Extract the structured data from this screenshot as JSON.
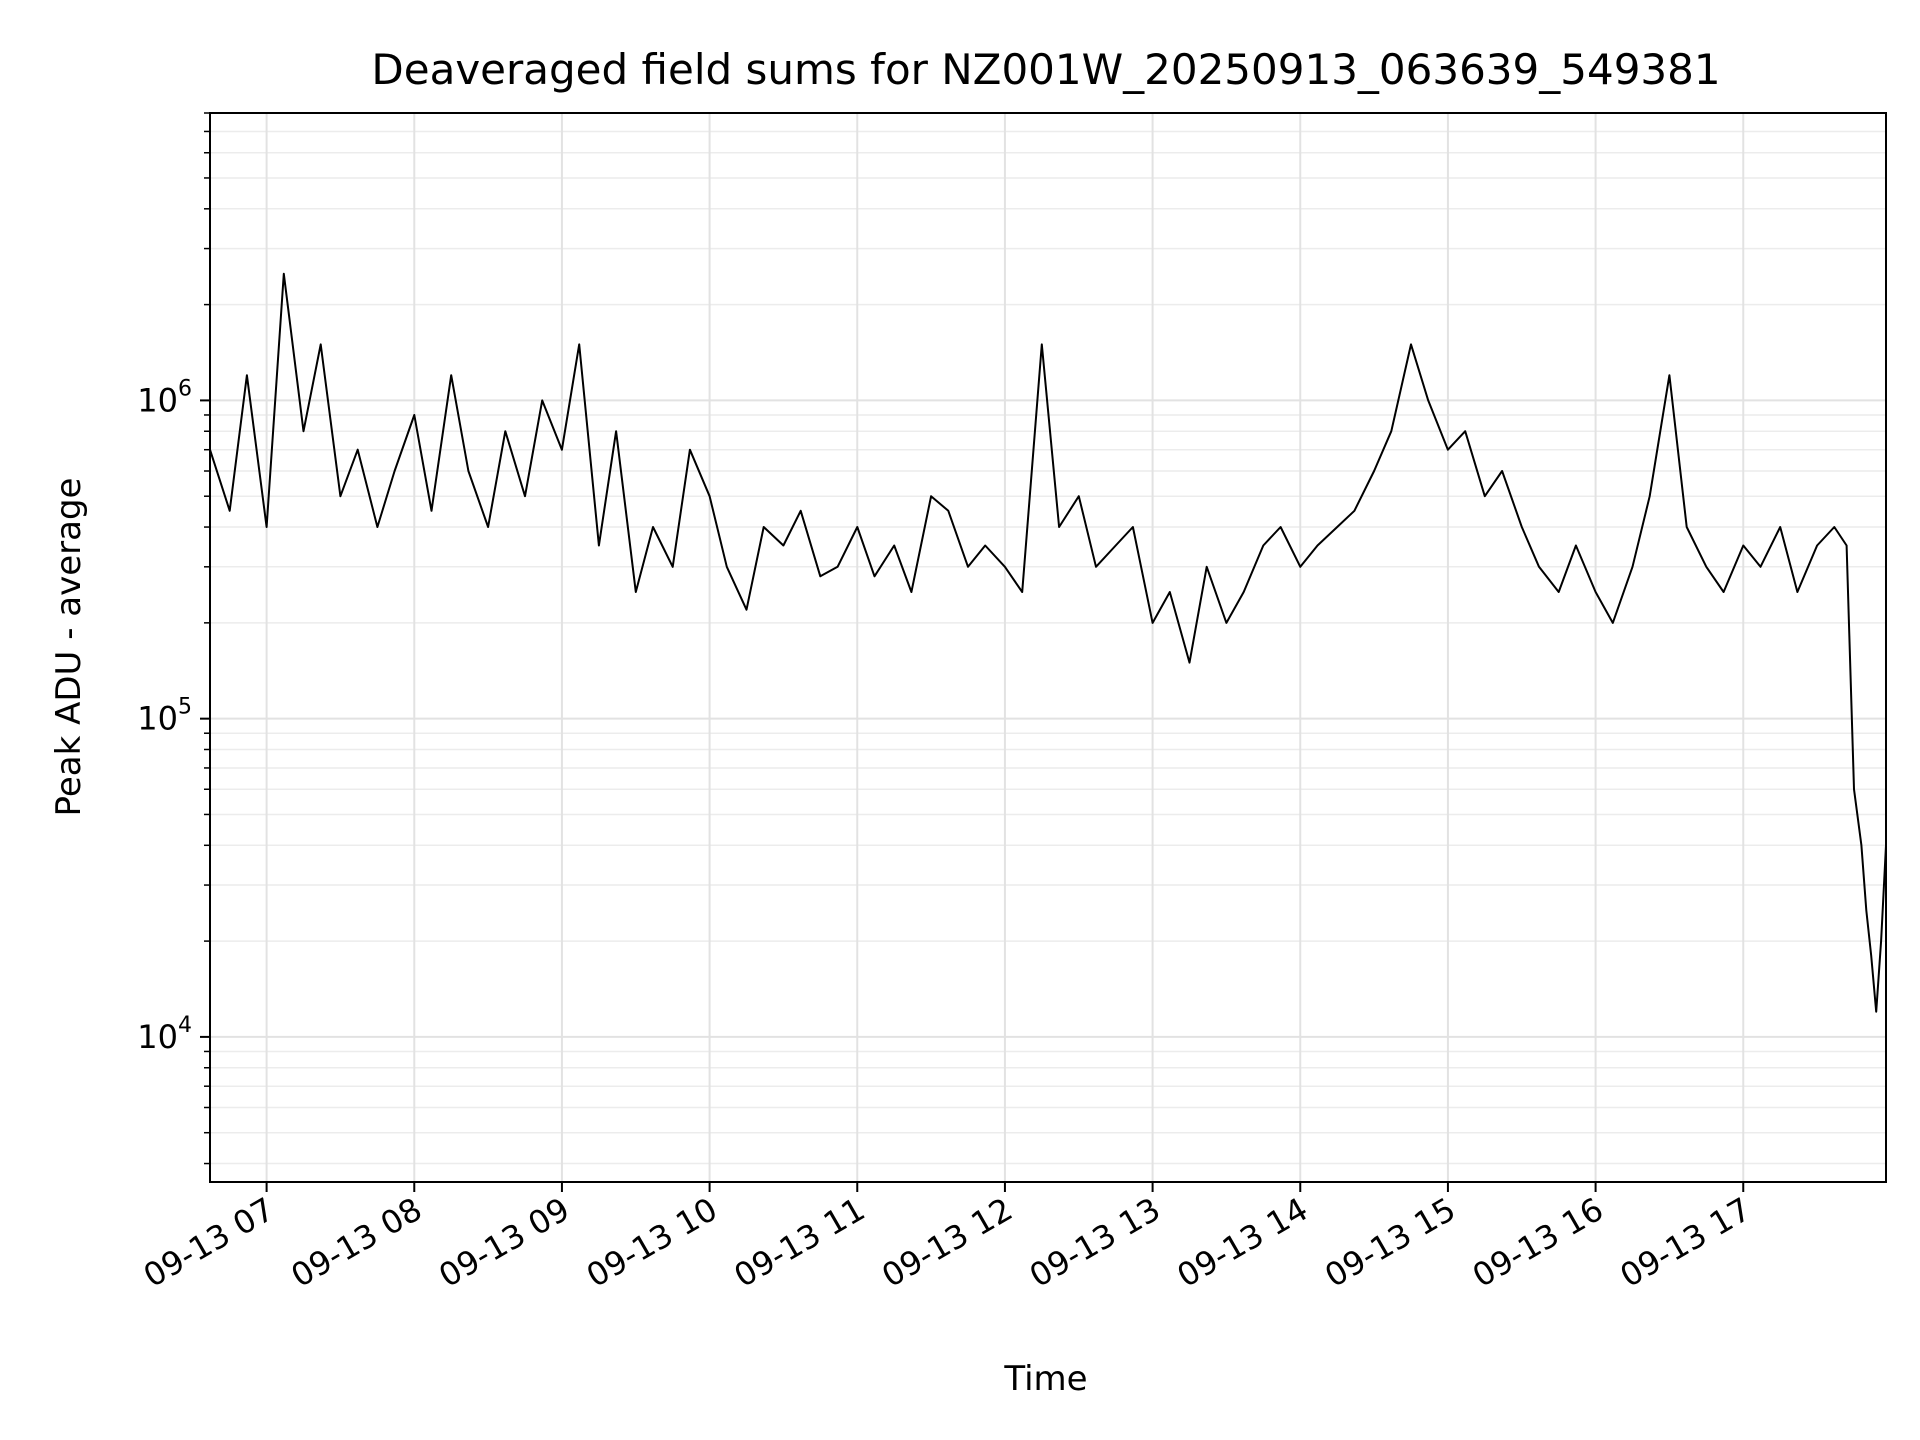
{
  "chart_data": {
    "type": "line",
    "title": "Deaveraged field sums for NZ001W_20250913_063639_549381",
    "xlabel": "Time",
    "ylabel": "Peak ADU - average",
    "y_scale": "log",
    "ylim": [
      3500,
      8000000
    ],
    "xlim": [
      "2025-09-13 06:37",
      "2025-09-13 17:58"
    ],
    "grid": true,
    "line_color": "#000000",
    "x_ticks": [
      {
        "value": "2025-09-13 07:00",
        "label": "09-13 07"
      },
      {
        "value": "2025-09-13 08:00",
        "label": "09-13 08"
      },
      {
        "value": "2025-09-13 09:00",
        "label": "09-13 09"
      },
      {
        "value": "2025-09-13 10:00",
        "label": "09-13 10"
      },
      {
        "value": "2025-09-13 11:00",
        "label": "09-13 11"
      },
      {
        "value": "2025-09-13 12:00",
        "label": "09-13 12"
      },
      {
        "value": "2025-09-13 13:00",
        "label": "09-13 13"
      },
      {
        "value": "2025-09-13 14:00",
        "label": "09-13 14"
      },
      {
        "value": "2025-09-13 15:00",
        "label": "09-13 15"
      },
      {
        "value": "2025-09-13 16:00",
        "label": "09-13 16"
      },
      {
        "value": "2025-09-13 17:00",
        "label": "09-13 17"
      }
    ],
    "y_ticks": [
      {
        "value": 10000,
        "base": "10",
        "exp": "4"
      },
      {
        "value": 100000,
        "base": "10",
        "exp": "5"
      },
      {
        "value": 1000000,
        "base": "10",
        "exp": "6"
      }
    ],
    "series": [
      {
        "x": [
          "2025-09-13 06:37",
          "2025-09-13 06:45",
          "2025-09-13 06:52",
          "2025-09-13 07:00",
          "2025-09-13 07:07",
          "2025-09-13 07:15",
          "2025-09-13 07:22",
          "2025-09-13 07:30",
          "2025-09-13 07:37",
          "2025-09-13 07:45",
          "2025-09-13 07:52",
          "2025-09-13 08:00",
          "2025-09-13 08:07",
          "2025-09-13 08:15",
          "2025-09-13 08:22",
          "2025-09-13 08:30",
          "2025-09-13 08:37",
          "2025-09-13 08:45",
          "2025-09-13 08:52",
          "2025-09-13 09:00",
          "2025-09-13 09:07",
          "2025-09-13 09:15",
          "2025-09-13 09:22",
          "2025-09-13 09:30",
          "2025-09-13 09:37",
          "2025-09-13 09:45",
          "2025-09-13 09:52",
          "2025-09-13 10:00",
          "2025-09-13 10:07",
          "2025-09-13 10:15",
          "2025-09-13 10:22",
          "2025-09-13 10:30",
          "2025-09-13 10:37",
          "2025-09-13 10:45",
          "2025-09-13 10:52",
          "2025-09-13 11:00",
          "2025-09-13 11:07",
          "2025-09-13 11:15",
          "2025-09-13 11:22",
          "2025-09-13 11:30",
          "2025-09-13 11:37",
          "2025-09-13 11:45",
          "2025-09-13 11:52",
          "2025-09-13 12:00",
          "2025-09-13 12:07",
          "2025-09-13 12:15",
          "2025-09-13 12:22",
          "2025-09-13 12:30",
          "2025-09-13 12:37",
          "2025-09-13 12:45",
          "2025-09-13 12:52",
          "2025-09-13 13:00",
          "2025-09-13 13:07",
          "2025-09-13 13:15",
          "2025-09-13 13:22",
          "2025-09-13 13:30",
          "2025-09-13 13:37",
          "2025-09-13 13:45",
          "2025-09-13 13:52",
          "2025-09-13 14:00",
          "2025-09-13 14:07",
          "2025-09-13 14:15",
          "2025-09-13 14:22",
          "2025-09-13 14:30",
          "2025-09-13 14:37",
          "2025-09-13 14:45",
          "2025-09-13 14:52",
          "2025-09-13 15:00",
          "2025-09-13 15:07",
          "2025-09-13 15:15",
          "2025-09-13 15:22",
          "2025-09-13 15:30",
          "2025-09-13 15:37",
          "2025-09-13 15:45",
          "2025-09-13 15:52",
          "2025-09-13 16:00",
          "2025-09-13 16:07",
          "2025-09-13 16:15",
          "2025-09-13 16:22",
          "2025-09-13 16:30",
          "2025-09-13 16:37",
          "2025-09-13 16:45",
          "2025-09-13 16:52",
          "2025-09-13 17:00",
          "2025-09-13 17:07",
          "2025-09-13 17:15",
          "2025-09-13 17:22",
          "2025-09-13 17:30",
          "2025-09-13 17:37",
          "2025-09-13 17:42",
          "2025-09-13 17:45",
          "2025-09-13 17:48",
          "2025-09-13 17:50",
          "2025-09-13 17:52",
          "2025-09-13 17:54",
          "2025-09-13 17:56",
          "2025-09-13 17:58"
        ],
        "y": [
          700000,
          450000,
          1200000,
          400000,
          2500000,
          800000,
          1500000,
          500000,
          700000,
          400000,
          600000,
          900000,
          450000,
          1200000,
          600000,
          400000,
          800000,
          500000,
          1000000,
          700000,
          1500000,
          350000,
          800000,
          250000,
          400000,
          300000,
          700000,
          500000,
          300000,
          220000,
          400000,
          350000,
          450000,
          280000,
          300000,
          400000,
          280000,
          350000,
          250000,
          500000,
          450000,
          300000,
          350000,
          300000,
          250000,
          1500000,
          400000,
          500000,
          300000,
          350000,
          400000,
          200000,
          250000,
          150000,
          300000,
          200000,
          250000,
          350000,
          400000,
          300000,
          350000,
          400000,
          450000,
          600000,
          800000,
          1500000,
          1000000,
          700000,
          800000,
          500000,
          600000,
          400000,
          300000,
          250000,
          350000,
          250000,
          200000,
          300000,
          500000,
          1200000,
          400000,
          300000,
          250000,
          350000,
          300000,
          400000,
          250000,
          350000,
          400000,
          350000,
          60000,
          40000,
          25000,
          18000,
          12000,
          20000,
          40000
        ]
      }
    ]
  }
}
